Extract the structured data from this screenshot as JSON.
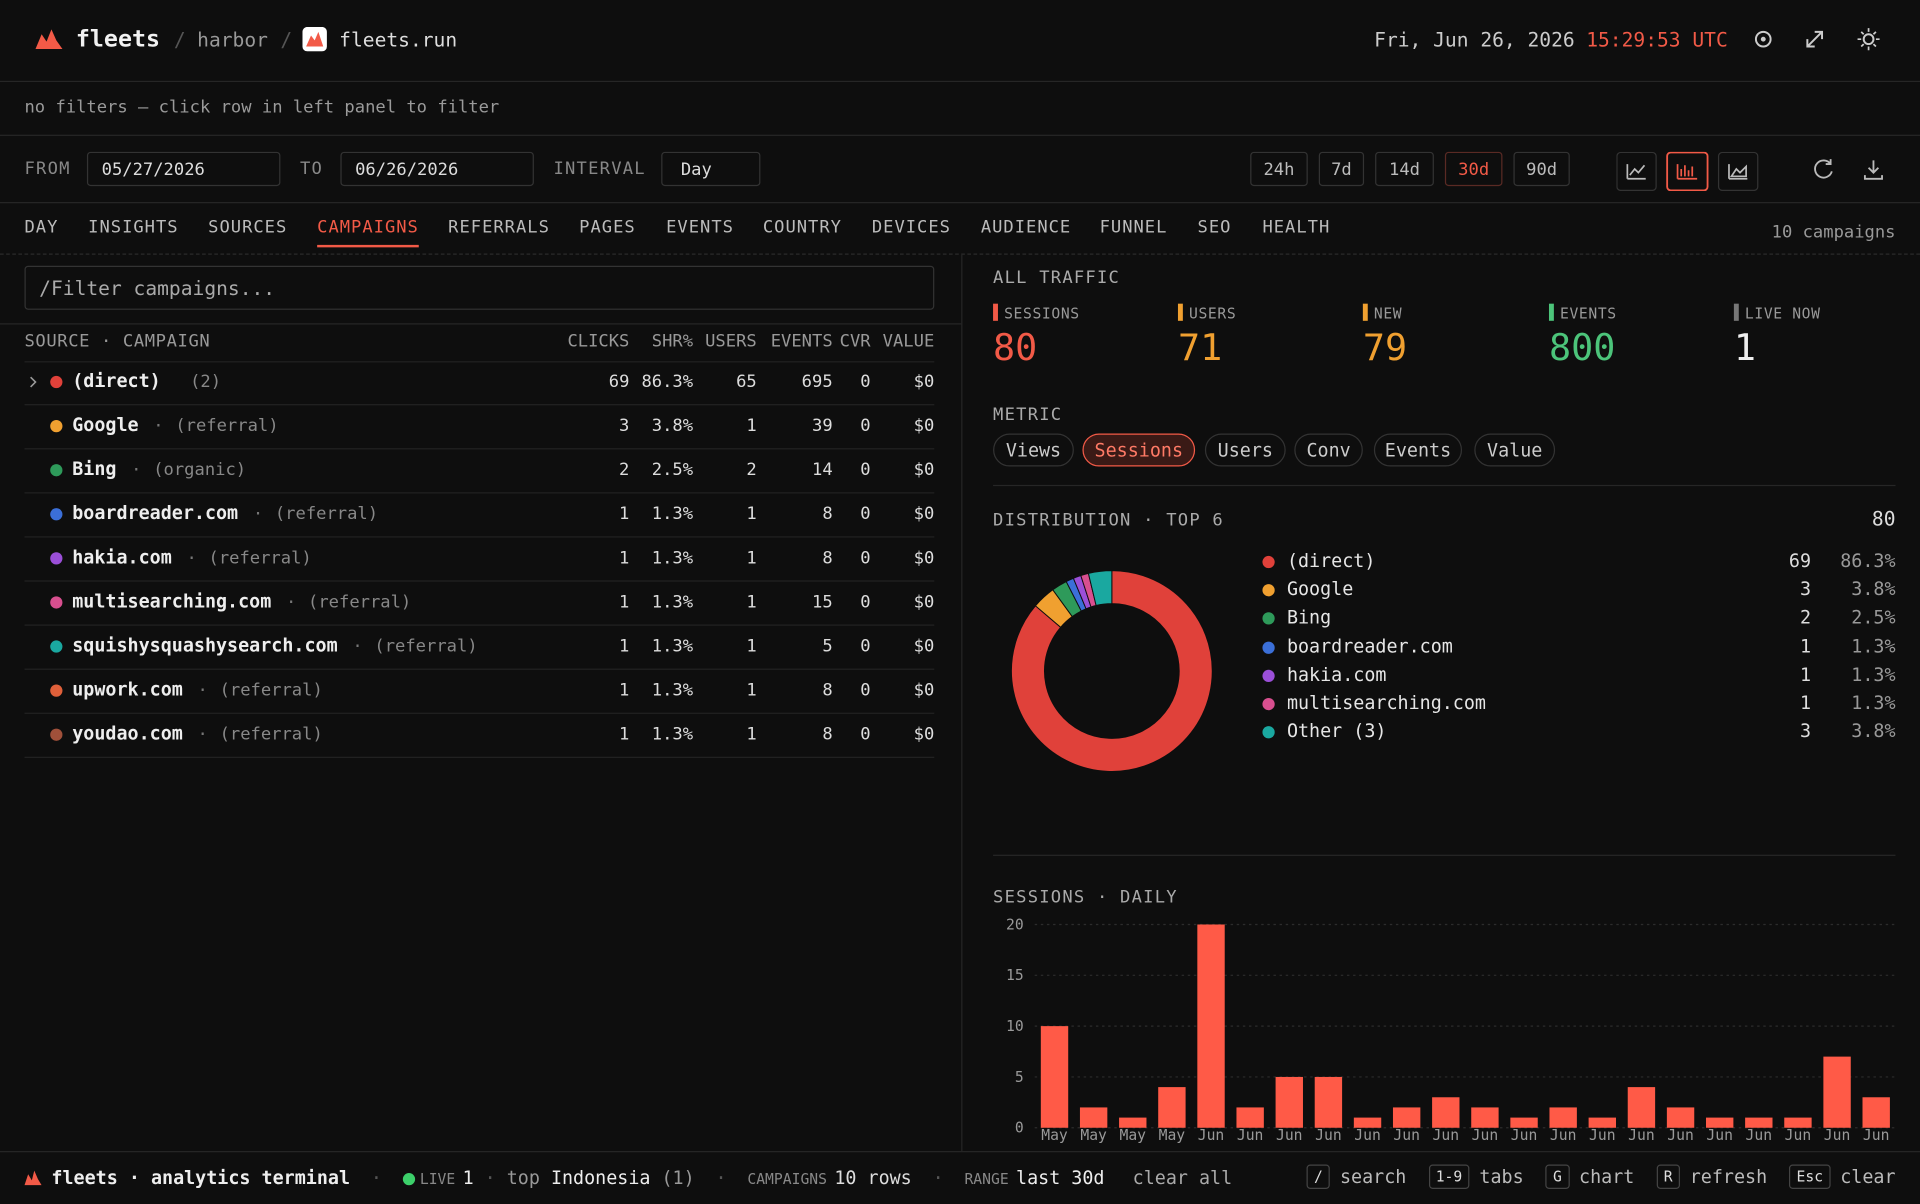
{
  "header": {
    "brand": "fleets",
    "separator": "/",
    "crumbs": [
      "harbor",
      "fleets.run"
    ],
    "date": "Fri, Jun 26, 2026",
    "time": "15:29:53 UTC"
  },
  "filter_note": "no filters — click row in left panel to filter",
  "controls": {
    "from_label": "FROM",
    "from": "05/27/2026",
    "to_label": "TO",
    "to": "06/26/2026",
    "interval_label": "INTERVAL",
    "interval": "Day",
    "ranges": [
      "24h",
      "7d",
      "14d",
      "30d",
      "90d"
    ],
    "active_range": 3,
    "active_chart": 1
  },
  "tabs": {
    "items": [
      "DAY",
      "INSIGHTS",
      "SOURCES",
      "CAMPAIGNS",
      "REFERRALS",
      "PAGES",
      "EVENTS",
      "COUNTRY",
      "DEVICES",
      "AUDIENCE",
      "FUNNEL",
      "SEO",
      "HEALTH"
    ],
    "active": 3,
    "count": "10 campaigns"
  },
  "table": {
    "placeholder": "/Filter campaigns...",
    "separator": "·",
    "columns": [
      "SOURCE · CAMPAIGN",
      "CLICKS",
      "SHR%",
      "USERS",
      "EVENTS",
      "CVR",
      "VALUE"
    ],
    "rows": [
      {
        "name": "(direct)",
        "tag": "(2)",
        "color": "#e0413a",
        "cells": [
          "69",
          "86.3%",
          "65",
          "695",
          "0",
          "$0"
        ]
      },
      {
        "name": "Google",
        "tag": "(referral)",
        "color": "#f0a030",
        "cells": [
          "3",
          "3.8%",
          "1",
          "39",
          "0",
          "$0"
        ]
      },
      {
        "name": "Bing",
        "tag": "(organic)",
        "color": "#2e9a5a",
        "cells": [
          "2",
          "2.5%",
          "2",
          "14",
          "0",
          "$0"
        ]
      },
      {
        "name": "boardreader.com",
        "tag": "(referral)",
        "color": "#3b6fd8",
        "cells": [
          "1",
          "1.3%",
          "1",
          "8",
          "0",
          "$0"
        ]
      },
      {
        "name": "hakia.com",
        "tag": "(referral)",
        "color": "#9b4fd8",
        "cells": [
          "1",
          "1.3%",
          "1",
          "8",
          "0",
          "$0"
        ]
      },
      {
        "name": "multisearching.com",
        "tag": "(referral)",
        "color": "#d84f8f",
        "cells": [
          "1",
          "1.3%",
          "1",
          "15",
          "0",
          "$0"
        ]
      },
      {
        "name": "squishysquashysearch.com",
        "tag": "(referral)",
        "color": "#1aa8a0",
        "cells": [
          "1",
          "1.3%",
          "1",
          "5",
          "0",
          "$0"
        ]
      },
      {
        "name": "upwork.com",
        "tag": "(referral)",
        "color": "#e0603a",
        "cells": [
          "1",
          "1.3%",
          "1",
          "8",
          "0",
          "$0"
        ]
      },
      {
        "name": "youdao.com",
        "tag": "(referral)",
        "color": "#a0503a",
        "cells": [
          "1",
          "1.3%",
          "1",
          "8",
          "0",
          "$0"
        ]
      }
    ]
  },
  "stats": {
    "title": "ALL TRAFFIC",
    "items": [
      {
        "label": "SESSIONS",
        "value": "80",
        "color": "#f25a47"
      },
      {
        "label": "USERS",
        "value": "71",
        "color": "#f0a030"
      },
      {
        "label": "NEW",
        "value": "79",
        "color": "#f0a030"
      },
      {
        "label": "EVENTS",
        "value": "800",
        "color": "#4cc47a"
      },
      {
        "label": "LIVE NOW",
        "value": "1",
        "color": "#eeeeee"
      }
    ]
  },
  "metric": {
    "label": "METRIC",
    "options": [
      "Views",
      "Sessions",
      "Users",
      "Conv",
      "Events",
      "Value"
    ],
    "active": 1
  },
  "distribution": {
    "title": "DISTRIBUTION · TOP 6",
    "total": "80",
    "items": [
      {
        "name": "(direct)",
        "value": 69,
        "share": "86.3%",
        "color": "#e0413a"
      },
      {
        "name": "Google",
        "value": 3,
        "share": "3.8%",
        "color": "#f0a030"
      },
      {
        "name": "Bing",
        "value": 2,
        "share": "2.5%",
        "color": "#2e9a5a"
      },
      {
        "name": "boardreader.com",
        "value": 1,
        "share": "1.3%",
        "color": "#3b6fd8"
      },
      {
        "name": "hakia.com",
        "value": 1,
        "share": "1.3%",
        "color": "#9b4fd8"
      },
      {
        "name": "multisearching.com",
        "value": 1,
        "share": "1.3%",
        "color": "#d84f8f"
      },
      {
        "name": "Other (3)",
        "value": 3,
        "share": "3.8%",
        "color": "#1aa8a0"
      }
    ]
  },
  "sessions_chart": {
    "type": "bar",
    "title": "SESSIONS · DAILY",
    "color": "#ff5a47",
    "ylim": [
      0,
      20
    ],
    "yticks": [
      0,
      5,
      10,
      15,
      20
    ],
    "grid": true,
    "categories": [
      "May",
      "May",
      "May",
      "May",
      "Jun",
      "Jun",
      "Jun",
      "Jun",
      "Jun",
      "Jun",
      "Jun",
      "Jun",
      "Jun",
      "Jun",
      "Jun",
      "Jun",
      "Jun",
      "Jun",
      "Jun",
      "Jun",
      "Jun",
      "Jun"
    ],
    "values": [
      10,
      2,
      1,
      4,
      20,
      2,
      5,
      5,
      1,
      2,
      3,
      2,
      1,
      2,
      1,
      4,
      2,
      1,
      1,
      1,
      7,
      3
    ]
  },
  "footer": {
    "brand": "fleets · analytics terminal",
    "separator": "·",
    "live_label": "LIVE",
    "live": "1",
    "top_label": "top",
    "top": "Indonesia",
    "top_count": "(1)",
    "campaigns_label": "CAMPAIGNS",
    "campaigns": "10 rows",
    "range_label": "RANGE",
    "range": "last 30d",
    "clear": "clear all",
    "shortcuts": [
      {
        "key": "/",
        "label": "search"
      },
      {
        "key": "1-9",
        "label": "tabs"
      },
      {
        "key": "G",
        "label": "chart"
      },
      {
        "key": "R",
        "label": "refresh"
      },
      {
        "key": "Esc",
        "label": "clear"
      }
    ]
  }
}
